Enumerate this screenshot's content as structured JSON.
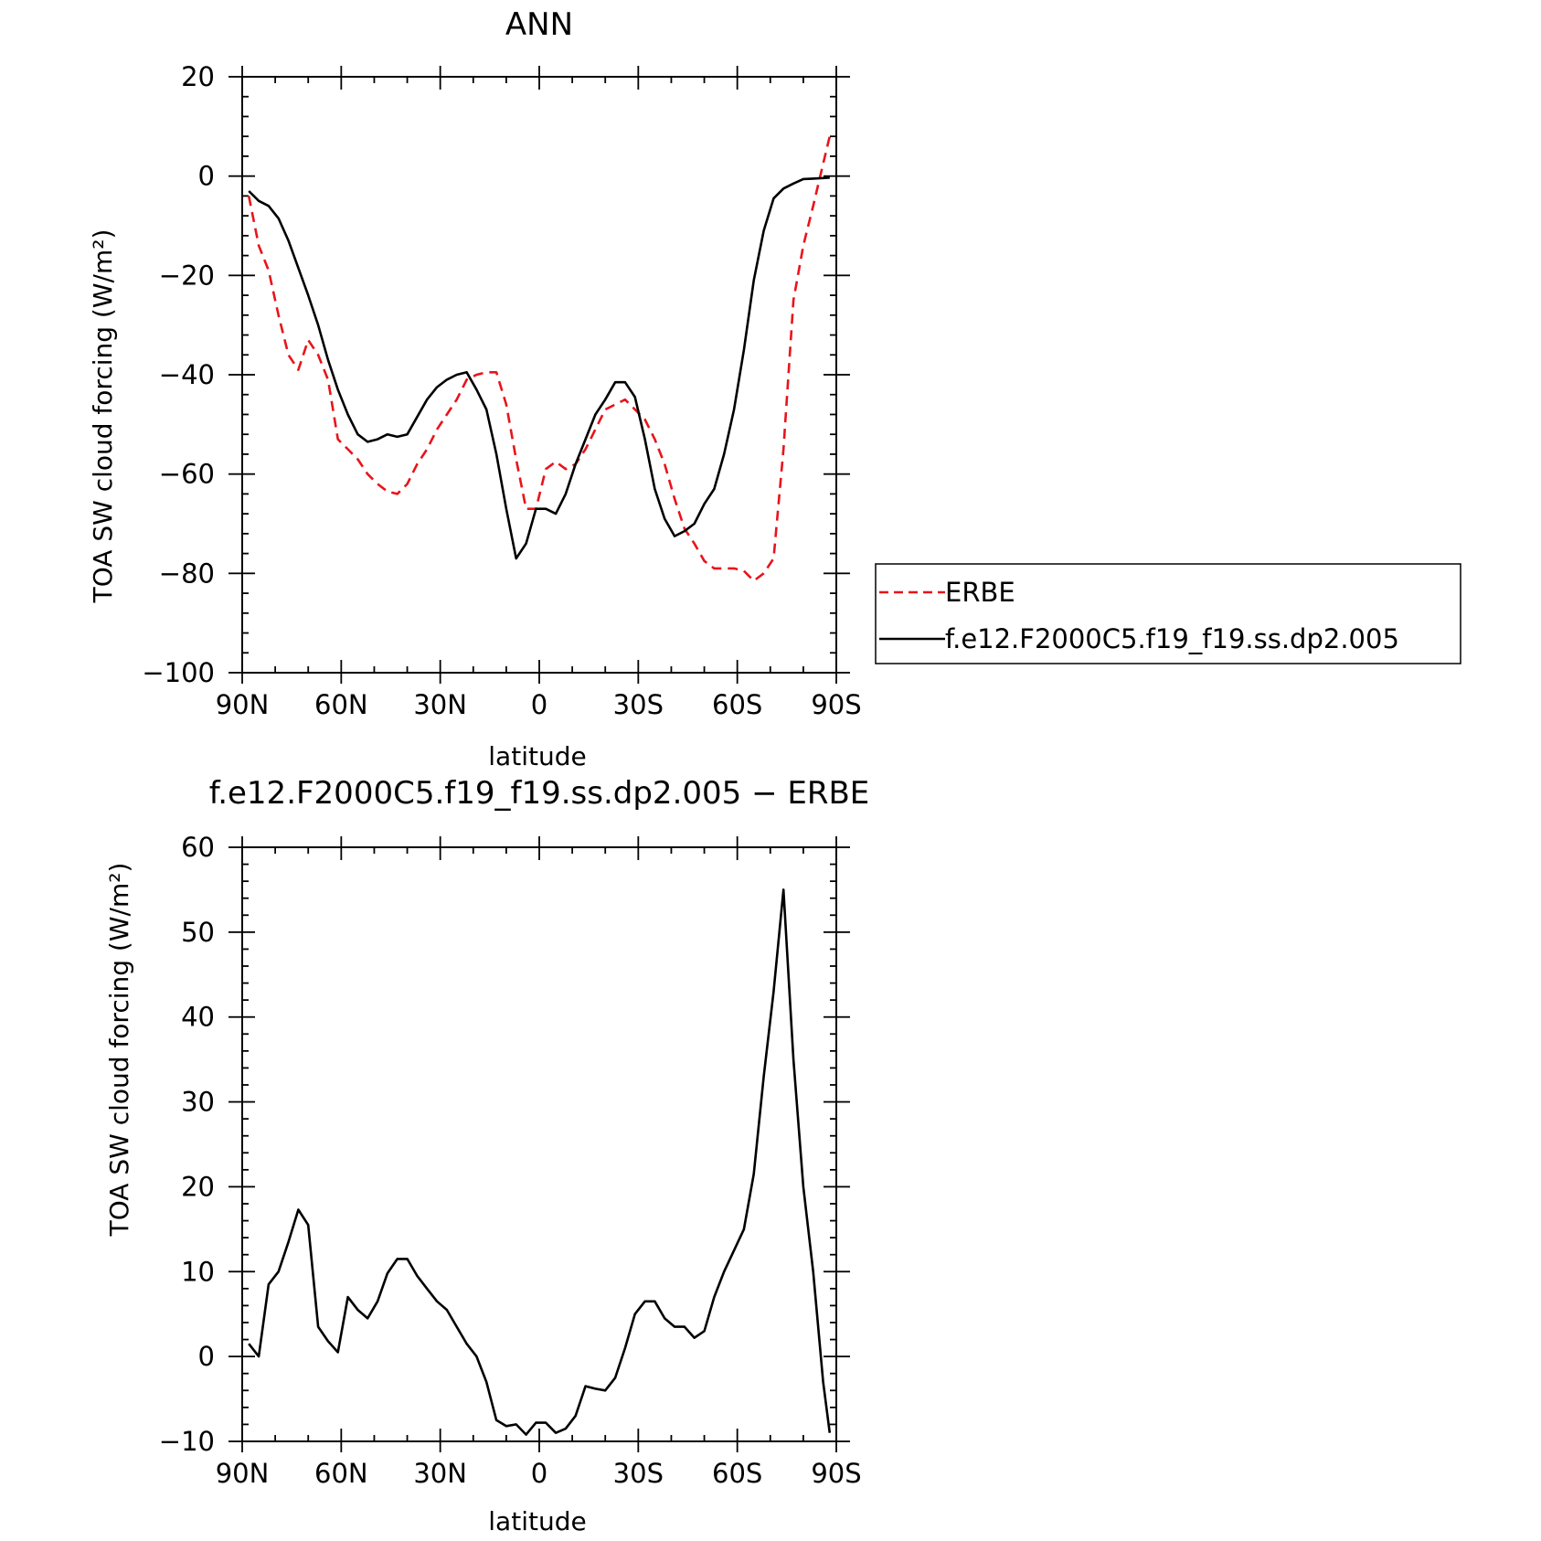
{
  "chart_data": [
    {
      "type": "line",
      "title": "ANN",
      "xlabel": "latitude",
      "ylabel": "TOA SW cloud forcing (W/m²)",
      "ylim": [
        -100,
        20
      ],
      "xlim": [
        90,
        -90
      ],
      "xticks": [
        90,
        60,
        30,
        0,
        -30,
        -60,
        -90
      ],
      "xtick_labels": [
        "90N",
        "60N",
        "30N",
        "0",
        "30S",
        "60S",
        "90S"
      ],
      "yticks": [
        20,
        0,
        -20,
        -40,
        -60,
        -80,
        -100
      ],
      "ytick_labels": [
        "20",
        "0",
        "−20",
        "−40",
        "−60",
        "−80",
        "−100"
      ],
      "legend_position": "outside-right",
      "grid": false,
      "series": [
        {
          "name": "ERBE",
          "color": "#e8141b",
          "style": "dashed",
          "x": [
            88,
            85,
            82,
            79,
            76,
            73,
            70,
            67,
            64,
            61,
            58,
            55,
            52,
            49,
            46,
            43,
            40,
            37,
            34,
            31,
            28,
            25,
            22,
            19,
            16,
            13,
            10,
            7,
            4,
            1,
            -2,
            -5,
            -8,
            -11,
            -14,
            -17,
            -20,
            -23,
            -26,
            -29,
            -32,
            -35,
            -38,
            -41,
            -44,
            -47,
            -50,
            -53,
            -56,
            -59,
            -62,
            -65,
            -68,
            -71,
            -74,
            -77,
            -80,
            -83,
            -86,
            -88
          ],
          "y": [
            -4,
            -14,
            -19,
            -28,
            -36,
            -39,
            -33,
            -36,
            -41,
            -53,
            -55,
            -57,
            -60,
            -62,
            -63.5,
            -64,
            -62,
            -58,
            -55,
            -51,
            -48,
            -45,
            -41,
            -40,
            -39.5,
            -39.5,
            -46,
            -57,
            -67,
            -67,
            -59,
            -57.5,
            -59,
            -58,
            -55,
            -51,
            -47,
            -46,
            -45,
            -47,
            -49,
            -53,
            -58,
            -65,
            -71,
            -74,
            -77.5,
            -79,
            -79,
            -79,
            -79.5,
            -81.5,
            -80,
            -77,
            -55,
            -25,
            -14,
            -6,
            2.5,
            8
          ]
        },
        {
          "name": "f.e12.F2000C5.f19_f19.ss.dp2.005",
          "color": "#000000",
          "style": "solid",
          "x": [
            88,
            85,
            82,
            79,
            76,
            73,
            70,
            67,
            64,
            61,
            58,
            55,
            52,
            49,
            46,
            43,
            40,
            37,
            34,
            31,
            28,
            25,
            22,
            19,
            16,
            13,
            10,
            7,
            4,
            1,
            -2,
            -5,
            -8,
            -11,
            -14,
            -17,
            -20,
            -23,
            -26,
            -29,
            -32,
            -35,
            -38,
            -41,
            -44,
            -47,
            -50,
            -53,
            -56,
            -59,
            -62,
            -65,
            -68,
            -71,
            -74,
            -77,
            -80,
            -83,
            -86,
            -88
          ],
          "y": [
            -3,
            -5,
            -6,
            -8.5,
            -13,
            -18.5,
            -24,
            -30,
            -37,
            -43,
            -48,
            -52,
            -53.5,
            -53,
            -52,
            -52.5,
            -52,
            -48.5,
            -45,
            -42.5,
            -41,
            -40,
            -39.5,
            -43,
            -47,
            -56,
            -67,
            -77,
            -74,
            -67,
            -67,
            -68,
            -64,
            -58,
            -53,
            -48,
            -45,
            -41.5,
            -41.5,
            -44.5,
            -53,
            -63,
            -69,
            -72.5,
            -71.5,
            -70,
            -66,
            -63,
            -56,
            -47,
            -35,
            -21,
            -11,
            -4.5,
            -2.5,
            -1.5,
            -0.6,
            -0.5,
            -0.4,
            -0.3
          ]
        }
      ]
    },
    {
      "type": "line",
      "title": "f.e12.F2000C5.f19_f19.ss.dp2.005 − ERBE",
      "xlabel": "latitude",
      "ylabel": "TOA SW cloud forcing (W/m²)",
      "ylim": [
        -10,
        60
      ],
      "xlim": [
        90,
        -90
      ],
      "xticks": [
        90,
        60,
        30,
        0,
        -30,
        -60,
        -90
      ],
      "xtick_labels": [
        "90N",
        "60N",
        "30N",
        "0",
        "30S",
        "60S",
        "90S"
      ],
      "yticks": [
        60,
        50,
        40,
        30,
        20,
        10,
        0,
        -10
      ],
      "ytick_labels": [
        "60",
        "50",
        "40",
        "30",
        "20",
        "10",
        "0",
        "−10"
      ],
      "grid": false,
      "series": [
        {
          "color": "#000000",
          "style": "solid",
          "x": [
            88,
            85,
            82,
            79,
            76,
            73,
            70,
            67,
            64,
            61,
            58,
            55,
            52,
            49,
            46,
            43,
            40,
            37,
            34,
            31,
            28,
            25,
            22,
            19,
            16,
            13,
            10,
            7,
            4,
            1,
            -2,
            -5,
            -8,
            -11,
            -14,
            -17,
            -20,
            -23,
            -26,
            -29,
            -32,
            -35,
            -38,
            -41,
            -44,
            -47,
            -50,
            -53,
            -56,
            -59,
            -62,
            -65,
            -68,
            -71,
            -74,
            -77,
            -80,
            -83,
            -86,
            -88
          ],
          "y": [
            1.5,
            0,
            8.5,
            10,
            13.5,
            17.3,
            15.5,
            3.5,
            1.8,
            0.5,
            7,
            5.5,
            4.5,
            6.5,
            9.8,
            11.5,
            11.5,
            9.5,
            8,
            6.5,
            5.5,
            3.5,
            1.5,
            0,
            -3,
            -7.5,
            -8.2,
            -8,
            -9.2,
            -7.8,
            -7.8,
            -9,
            -8.5,
            -7,
            -3.5,
            -3.8,
            -4,
            -2.5,
            1,
            5,
            6.5,
            6.5,
            4.5,
            3.5,
            3.5,
            2.2,
            3,
            7,
            10,
            12.5,
            15,
            21.5,
            33,
            43,
            55,
            35,
            20,
            10,
            -3,
            -9
          ]
        }
      ]
    }
  ]
}
